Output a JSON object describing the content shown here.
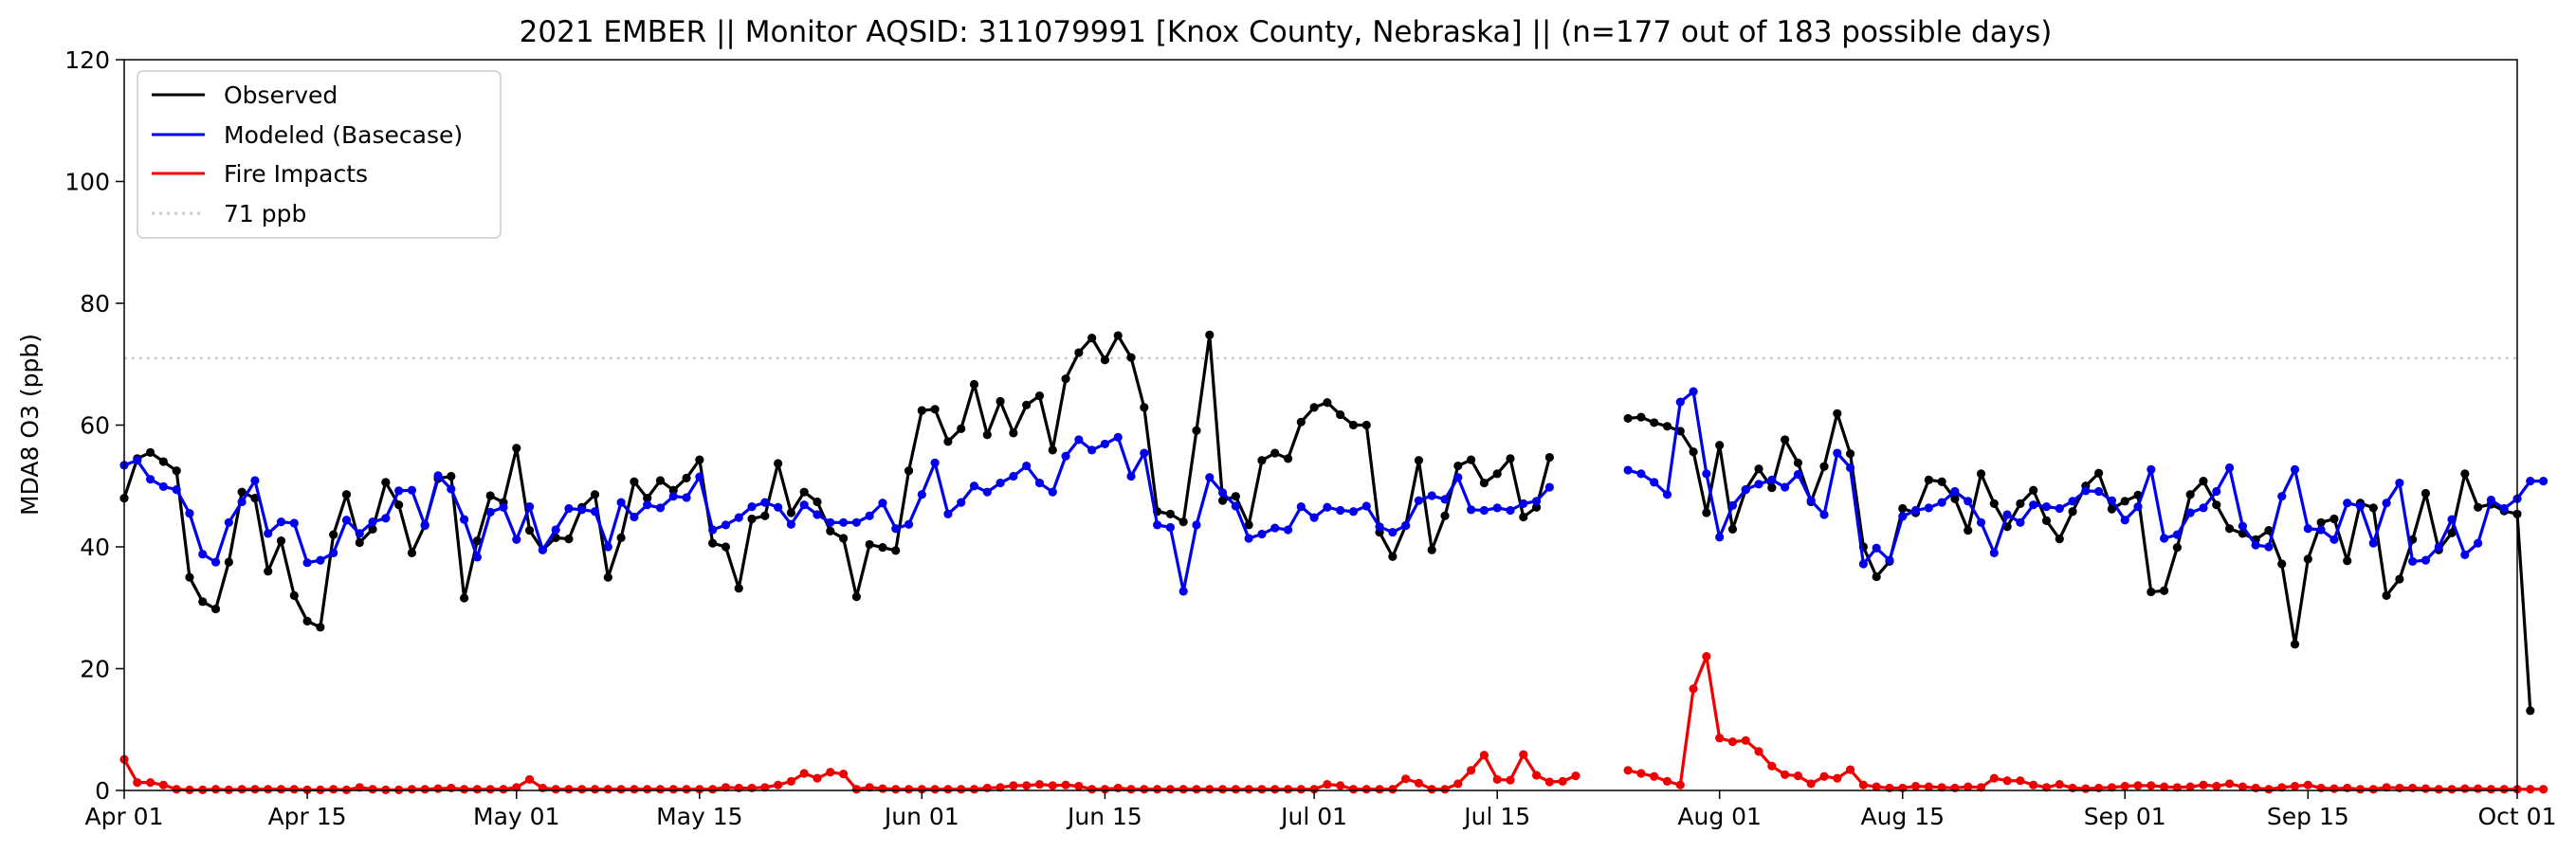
{
  "chart_data": {
    "type": "line",
    "title": "2021 EMBER || Monitor AQSID: 311079991 [Knox County, Nebraska] || (n=177 out of 183 possible days)",
    "ylabel": "MDA8 O3 (ppb)",
    "xlabel": "",
    "ylim": [
      0,
      120
    ],
    "xlim": [
      "2021-04-01",
      "2021-10-01"
    ],
    "yticks": [
      0,
      20,
      40,
      60,
      80,
      100,
      120
    ],
    "xticks": [
      {
        "date": "2021-04-01",
        "label": "Apr 01"
      },
      {
        "date": "2021-04-15",
        "label": "Apr 15"
      },
      {
        "date": "2021-05-01",
        "label": "May 01"
      },
      {
        "date": "2021-05-15",
        "label": "May 15"
      },
      {
        "date": "2021-06-01",
        "label": "Jun 01"
      },
      {
        "date": "2021-06-15",
        "label": "Jun 15"
      },
      {
        "date": "2021-07-01",
        "label": "Jul 01"
      },
      {
        "date": "2021-07-15",
        "label": "Jul 15"
      },
      {
        "date": "2021-08-01",
        "label": "Aug 01"
      },
      {
        "date": "2021-08-15",
        "label": "Aug 15"
      },
      {
        "date": "2021-09-01",
        "label": "Sep 01"
      },
      {
        "date": "2021-09-15",
        "label": "Sep 15"
      },
      {
        "date": "2021-10-01",
        "label": "Oct 01"
      }
    ],
    "legend_position": "top-left",
    "grid": false,
    "reference_line": {
      "name": "71 ppb",
      "value": 71,
      "color": "#cccccc",
      "style": "dotted"
    },
    "series": [
      {
        "name": "Observed",
        "color": "#000000",
        "segments": [
          {
            "start": "2021-04-01",
            "values": [
              48.0,
              54.5,
              55.5,
              54.0,
              52.5,
              35.0,
              31.0,
              29.8,
              37.5,
              49.0,
              48.0,
              36.0,
              41.0,
              32.0,
              27.8,
              26.8,
              42.0,
              48.6,
              40.7,
              42.9,
              50.6,
              46.9,
              39.0,
              43.6,
              51.2,
              51.6,
              31.6,
              41.0,
              48.4,
              47.3,
              56.2,
              42.7,
              39.5,
              41.5,
              41.3,
              46.5,
              48.6,
              35.0,
              41.5,
              50.7,
              48.0,
              50.9,
              49.3,
              51.3,
              54.3,
              40.6,
              40.0,
              33.2,
              44.6,
              45.1,
              53.7,
              45.6,
              49.0,
              47.4,
              42.6,
              41.4,
              31.8,
              40.4,
              39.9,
              39.4,
              52.5,
              62.4,
              62.6,
              57.3,
              59.4,
              66.7,
              58.4,
              63.9,
              58.7,
              63.3,
              64.8,
              55.9,
              67.6,
              71.9,
              74.3,
              70.7,
              74.7,
              71.1,
              62.9,
              45.8,
              45.4,
              44.1,
              59.1,
              74.8,
              47.6,
              48.3,
              43.6,
              54.2,
              55.4,
              54.5,
              60.5,
              62.9,
              63.7,
              61.7,
              60.0,
              60.0,
              42.4,
              38.4,
              43.5,
              54.2,
              39.5,
              45.1,
              53.3,
              54.3,
              50.5,
              52.0,
              54.5,
              44.9,
              46.5,
              54.7
            ]
          },
          {
            "start": "2021-07-25",
            "values": [
              61.1,
              61.3,
              60.4,
              59.8,
              59.0,
              55.6,
              45.6,
              56.7,
              42.9,
              49.4,
              52.8,
              49.7,
              57.6,
              53.8,
              47.4,
              53.2,
              61.9,
              55.3,
              40.0,
              35.1,
              37.6,
              46.3,
              45.6,
              51.0,
              50.7,
              47.9,
              42.7,
              52.0,
              47.1,
              43.3,
              47.1,
              49.3,
              44.3,
              41.3,
              45.8,
              50.0,
              52.1,
              46.2,
              47.5,
              48.5,
              32.6,
              32.8,
              39.9,
              48.6,
              50.8,
              46.9,
              43.0,
              42.2,
              41.2,
              42.7,
              37.2,
              24.0,
              38.0,
              44.0,
              44.6,
              37.7,
              47.2,
              46.4,
              32.0,
              34.7,
              41.2,
              48.8,
              39.5,
              42.3,
              52.0,
              46.5,
              47.0,
              45.9,
              45.4,
              13.1
            ]
          }
        ]
      },
      {
        "name": "Modeled (Basecase)",
        "color": "#0000ee",
        "segments": [
          {
            "start": "2021-04-01",
            "values": [
              53.4,
              54.2,
              51.1,
              49.9,
              49.4,
              45.5,
              38.8,
              37.5,
              44.0,
              47.4,
              50.9,
              42.2,
              44.1,
              43.9,
              37.4,
              37.8,
              39.0,
              44.4,
              42.2,
              44.1,
              44.7,
              49.2,
              49.3,
              43.5,
              51.7,
              49.5,
              44.5,
              38.3,
              45.7,
              46.5,
              41.2,
              46.6,
              39.5,
              42.8,
              46.3,
              46.1,
              45.8,
              40.0,
              47.3,
              44.9,
              46.9,
              46.4,
              48.3,
              48.1,
              51.5,
              42.8,
              43.6,
              44.8,
              46.6,
              47.3,
              46.5,
              43.7,
              46.9,
              45.3,
              44.0,
              44.0,
              44.0,
              45.1,
              47.2,
              43.0,
              43.7,
              48.6,
              53.8,
              45.4,
              47.3,
              50.0,
              49.0,
              50.5,
              51.6,
              53.3,
              50.5,
              49.0,
              54.9,
              57.6,
              55.9,
              56.9,
              58.0,
              51.6,
              55.4,
              43.6,
              43.2,
              32.7,
              43.6,
              51.4,
              48.9,
              46.7,
              41.4,
              42.1,
              43.1,
              42.8,
              46.6,
              44.8,
              46.5,
              46.0,
              45.8,
              46.7,
              43.3,
              42.4,
              43.5,
              47.6,
              48.4,
              47.8,
              51.4,
              46.1,
              46.0,
              46.4,
              46.0,
              47.1,
              47.5,
              49.8
            ]
          },
          {
            "start": "2021-07-25",
            "values": [
              52.6,
              52.0,
              50.6,
              48.6,
              63.8,
              65.5,
              52.0,
              41.6,
              46.8,
              49.4,
              50.3,
              51.0,
              49.8,
              51.9,
              47.6,
              45.3,
              55.4,
              53.0,
              37.2,
              39.8,
              37.8,
              45.0,
              46.0,
              46.4,
              47.3,
              49.1,
              47.5,
              44.0,
              39.0,
              45.3,
              44.0,
              46.9,
              46.6,
              46.3,
              47.5,
              49.2,
              49.1,
              47.6,
              44.4,
              46.6,
              52.7,
              41.4,
              42.0,
              45.6,
              46.4,
              49.1,
              53.0,
              43.4,
              40.3,
              40.0,
              48.3,
              52.7,
              43.0,
              42.8,
              41.2,
              47.2,
              46.7,
              40.6,
              47.2,
              50.5,
              37.6,
              37.8,
              40.0,
              44.5,
              38.7,
              40.6,
              47.7,
              46.3,
              47.9,
              50.8,
              50.8
            ]
          }
        ]
      },
      {
        "name": "Fire Impacts",
        "color": "#ee0000",
        "segments": [
          {
            "start": "2021-04-01",
            "values": [
              5.1,
              1.3,
              1.3,
              0.9,
              0.2,
              0.1,
              0.1,
              0.2,
              0.1,
              0.2,
              0.2,
              0.2,
              0.2,
              0.2,
              0.1,
              0.1,
              0.2,
              0.1,
              0.5,
              0.2,
              0.1,
              0.1,
              0.2,
              0.2,
              0.3,
              0.4,
              0.2,
              0.2,
              0.2,
              0.2,
              0.5,
              1.8,
              0.4,
              0.2,
              0.2,
              0.2,
              0.2,
              0.2,
              0.2,
              0.2,
              0.2,
              0.2,
              0.2,
              0.2,
              0.2,
              0.2,
              0.5,
              0.4,
              0.4,
              0.5,
              0.9,
              1.5,
              2.8,
              2.0,
              3.0,
              2.7,
              0.2,
              0.5,
              0.3,
              0.2,
              0.2,
              0.2,
              0.2,
              0.2,
              0.2,
              0.2,
              0.4,
              0.5,
              0.8,
              0.8,
              1.0,
              0.8,
              0.9,
              0.7,
              0.2,
              0.2,
              0.4,
              0.2,
              0.2,
              0.2,
              0.2,
              0.2,
              0.2,
              0.2,
              0.2,
              0.2,
              0.2,
              0.2,
              0.2,
              0.2,
              0.2,
              0.2,
              1.0,
              0.8,
              0.2,
              0.2,
              0.2,
              0.2,
              1.9,
              1.2,
              0.2,
              0.2,
              1.1,
              3.3,
              5.8,
              1.8,
              1.7,
              5.9,
              2.5,
              1.4,
              1.5,
              2.4
            ]
          },
          {
            "start": "2021-07-25",
            "values": [
              3.3,
              2.8,
              2.3,
              1.5,
              0.9,
              16.7,
              22.0,
              8.6,
              8.0,
              8.2,
              6.4,
              4.0,
              2.6,
              2.4,
              1.1,
              2.3,
              2.0,
              3.4,
              0.9,
              0.6,
              0.4,
              0.4,
              0.7,
              0.6,
              0.5,
              0.4,
              0.6,
              0.5,
              2.0,
              1.6,
              1.6,
              0.9,
              0.5,
              1.0,
              0.4,
              0.3,
              0.4,
              0.5,
              0.7,
              0.8,
              0.8,
              0.6,
              0.5,
              0.6,
              0.9,
              0.7,
              1.1,
              0.6,
              0.4,
              0.2,
              0.5,
              0.7,
              0.9,
              0.4,
              0.3,
              0.4,
              0.2,
              0.2,
              0.5,
              0.4,
              0.4,
              0.3,
              0.2,
              0.2,
              0.3,
              0.3,
              0.2,
              0.2,
              0.2,
              0.2,
              0.2
            ]
          }
        ]
      }
    ]
  }
}
